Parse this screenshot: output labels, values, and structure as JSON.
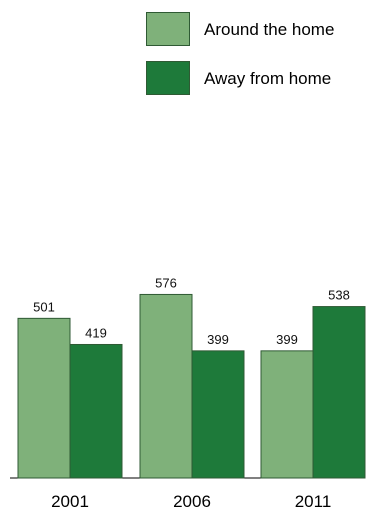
{
  "chart_data": {
    "type": "bar",
    "categories": [
      "2001",
      "2006",
      "2011"
    ],
    "series": [
      {
        "name": "Around the home",
        "values": [
          501,
          576,
          399
        ],
        "color": "#7fb17a"
      },
      {
        "name": "Away from home",
        "values": [
          419,
          399,
          538
        ],
        "color": "#1e7a3a"
      }
    ],
    "title": "",
    "xlabel": "",
    "ylabel": "",
    "ylim": [
      0,
      1500
    ],
    "grid": false,
    "legend_position": "top-right",
    "show_data_labels": true
  }
}
